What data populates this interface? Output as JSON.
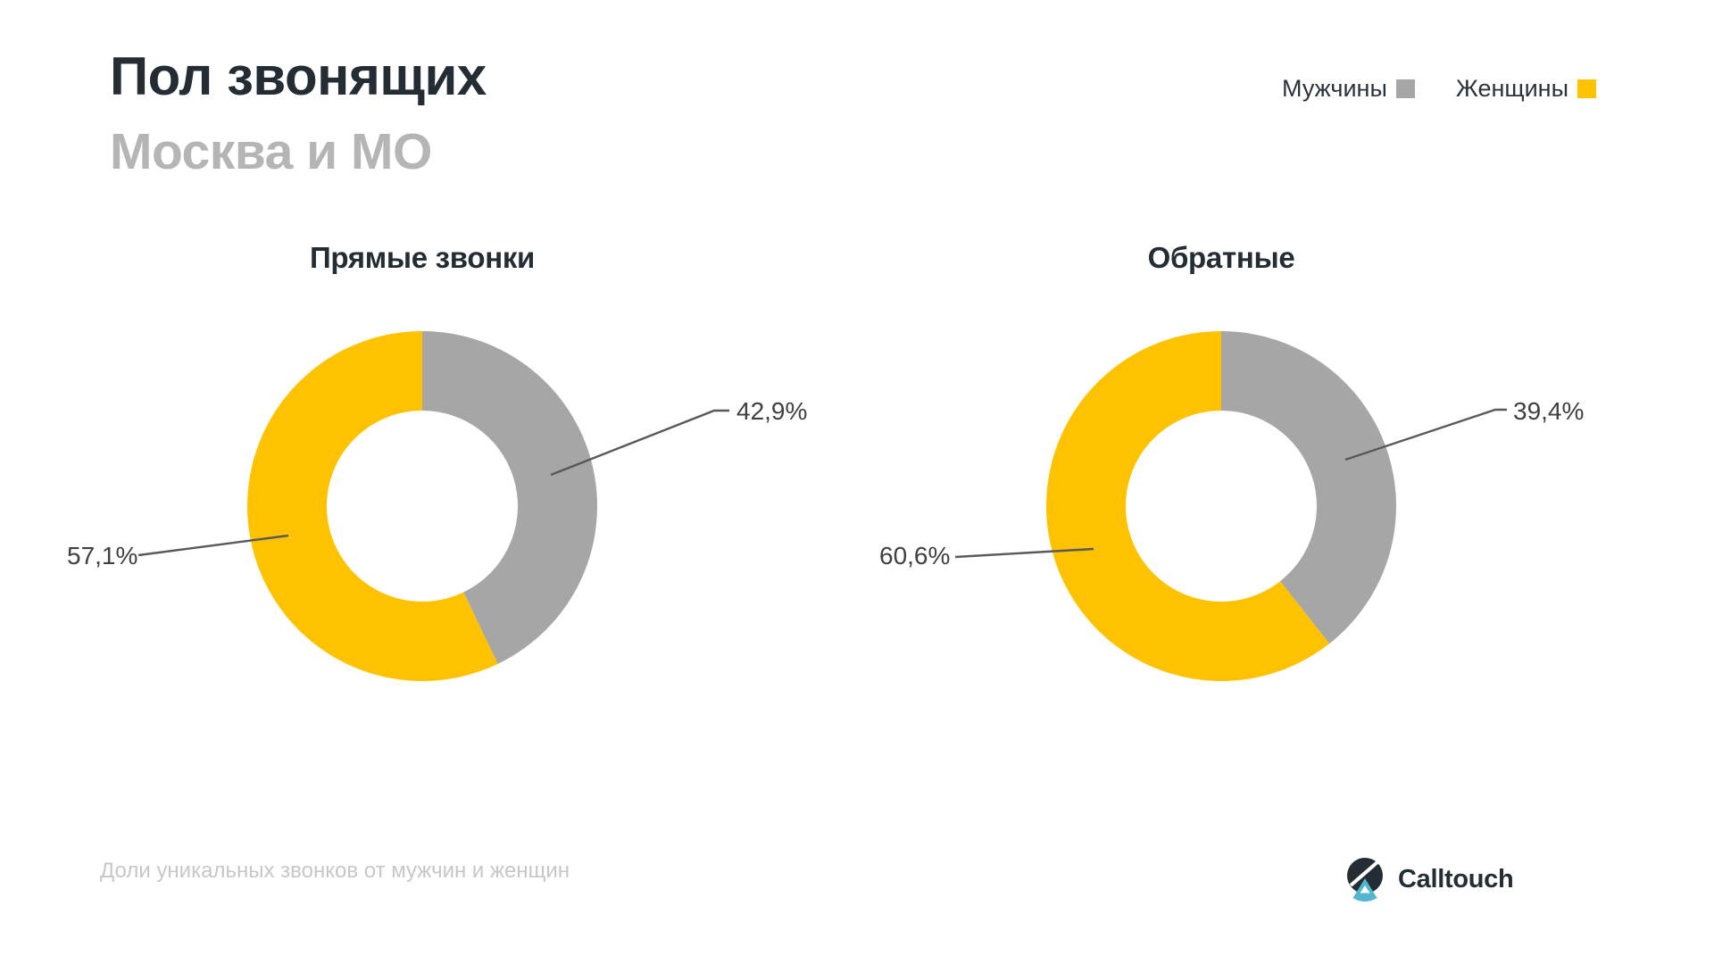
{
  "header": {
    "title": "Пол звонящих",
    "subtitle": "Москва и МО"
  },
  "legend": {
    "items": [
      {
        "key": "men",
        "label": "Мужчины",
        "color": "#A6A6A6"
      },
      {
        "key": "women",
        "label": "Женщины",
        "color": "#FFC200"
      }
    ]
  },
  "charts": [
    {
      "title": "Прямые звонки",
      "labels": {
        "men": "42,9%",
        "women": "57,1%"
      }
    },
    {
      "title": "Обратные",
      "labels": {
        "men": "39,4%",
        "women": "60,6%"
      }
    }
  ],
  "chart_data": [
    {
      "type": "pie",
      "subtype": "donut",
      "title": "Прямые звонки",
      "categories": [
        "Мужчины",
        "Женщины"
      ],
      "keys": [
        "men",
        "women"
      ],
      "values": [
        42.9,
        57.1
      ],
      "unit": "%",
      "colors": [
        "#A6A6A6",
        "#FFC200"
      ],
      "start_angle": "12-oclock",
      "direction": "clockwise",
      "data_labels": [
        "42,9%",
        "57,1%"
      ],
      "legend_position": "top-right"
    },
    {
      "type": "pie",
      "subtype": "donut",
      "title": "Обратные",
      "categories": [
        "Мужчины",
        "Женщины"
      ],
      "keys": [
        "men",
        "women"
      ],
      "values": [
        39.4,
        60.6
      ],
      "unit": "%",
      "colors": [
        "#A6A6A6",
        "#FFC200"
      ],
      "start_angle": "12-oclock",
      "direction": "clockwise",
      "data_labels": [
        "39,4%",
        "60,6%"
      ],
      "legend_position": "top-right"
    }
  ],
  "footer": {
    "caption": "Доли уникальных звонков от мужчин и женщин",
    "brand": "Calltouch"
  },
  "colors": {
    "men_slice": "#A6A6A6",
    "women_slice": "#FFC200",
    "ink_dark": "#242D34",
    "subtitle_gray": "#B5B5B5",
    "caption_gray": "#C5C7C9",
    "leader_line": "#58595B",
    "logo_teal": "#54B5D0",
    "background": "#FFFFFF"
  }
}
